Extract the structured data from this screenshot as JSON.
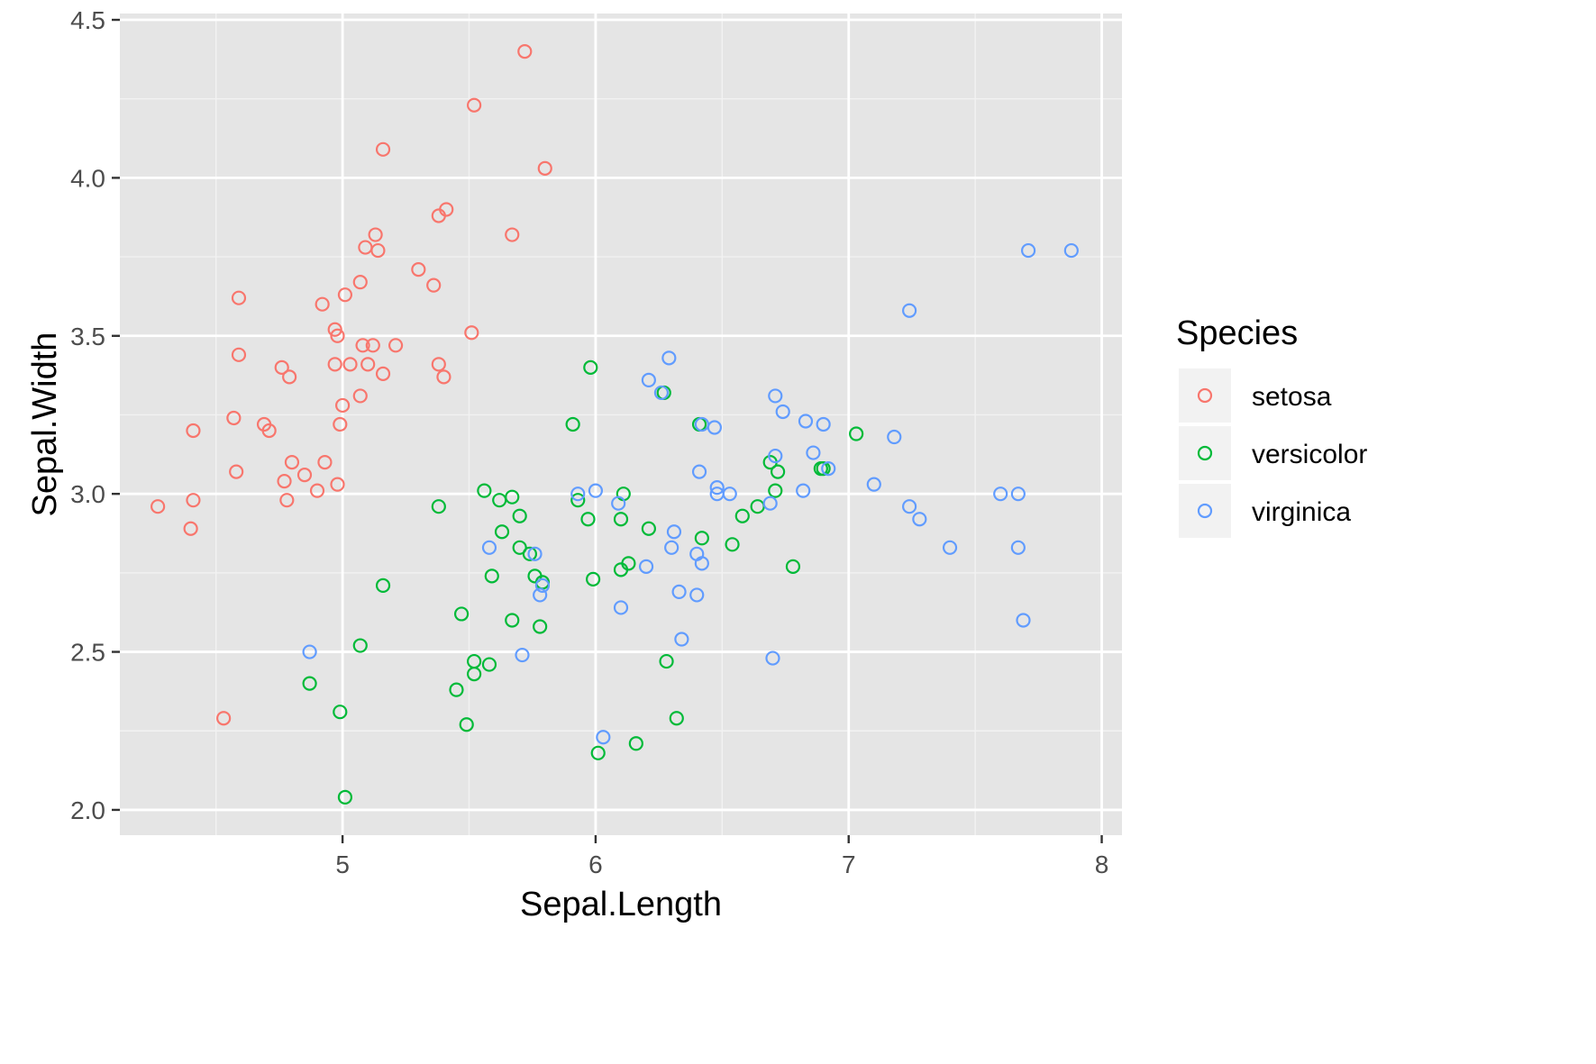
{
  "chart_data": {
    "type": "scatter",
    "xlabel": "Sepal.Length",
    "ylabel": "Sepal.Width",
    "xlim": [
      4.12,
      8.08
    ],
    "ylim": [
      1.92,
      4.52
    ],
    "x_ticks": [
      5,
      6,
      7,
      8
    ],
    "y_ticks": [
      2.0,
      2.5,
      3.0,
      3.5,
      4.0,
      4.5
    ],
    "x_tick_labels": [
      "5",
      "6",
      "7",
      "8"
    ],
    "y_tick_labels": [
      "2.0",
      "2.5",
      "3.0",
      "3.5",
      "4.0",
      "4.5"
    ],
    "grid": true,
    "panel_background": "#e5e5e5",
    "legend": {
      "title": "Species",
      "placement": "right"
    },
    "series": [
      {
        "name": "setosa",
        "color": "#f8766d",
        "points": [
          [
            5.72,
            4.4
          ],
          [
            5.52,
            4.23
          ],
          [
            5.16,
            4.09
          ],
          [
            5.8,
            4.03
          ],
          [
            5.41,
            3.9
          ],
          [
            5.38,
            3.88
          ],
          [
            5.67,
            3.82
          ],
          [
            5.13,
            3.82
          ],
          [
            5.09,
            3.78
          ],
          [
            5.14,
            3.77
          ],
          [
            5.3,
            3.71
          ],
          [
            5.07,
            3.67
          ],
          [
            5.36,
            3.66
          ],
          [
            5.01,
            3.63
          ],
          [
            4.59,
            3.62
          ],
          [
            4.92,
            3.6
          ],
          [
            4.97,
            3.52
          ],
          [
            5.51,
            3.51
          ],
          [
            4.98,
            3.5
          ],
          [
            5.08,
            3.47
          ],
          [
            5.12,
            3.47
          ],
          [
            5.21,
            3.47
          ],
          [
            4.59,
            3.44
          ],
          [
            5.03,
            3.41
          ],
          [
            4.97,
            3.41
          ],
          [
            5.1,
            3.41
          ],
          [
            5.38,
            3.41
          ],
          [
            4.76,
            3.4
          ],
          [
            5.16,
            3.38
          ],
          [
            4.79,
            3.37
          ],
          [
            5.4,
            3.37
          ],
          [
            5.07,
            3.31
          ],
          [
            5.0,
            3.28
          ],
          [
            4.57,
            3.24
          ],
          [
            4.99,
            3.22
          ],
          [
            4.69,
            3.22
          ],
          [
            4.71,
            3.2
          ],
          [
            4.41,
            3.2
          ],
          [
            4.8,
            3.1
          ],
          [
            4.93,
            3.1
          ],
          [
            4.58,
            3.07
          ],
          [
            4.85,
            3.06
          ],
          [
            4.77,
            3.04
          ],
          [
            4.98,
            3.03
          ],
          [
            4.9,
            3.01
          ],
          [
            4.78,
            2.98
          ],
          [
            4.41,
            2.98
          ],
          [
            4.27,
            2.96
          ],
          [
            4.4,
            2.89
          ],
          [
            4.53,
            2.29
          ]
        ]
      },
      {
        "name": "versicolor",
        "color": "#00ba38",
        "points": [
          [
            5.98,
            3.4
          ],
          [
            6.27,
            3.32
          ],
          [
            5.91,
            3.22
          ],
          [
            6.41,
            3.22
          ],
          [
            7.03,
            3.19
          ],
          [
            6.69,
            3.1
          ],
          [
            6.72,
            3.07
          ],
          [
            6.89,
            3.08
          ],
          [
            6.9,
            3.08
          ],
          [
            6.71,
            3.01
          ],
          [
            5.56,
            3.01
          ],
          [
            5.67,
            2.99
          ],
          [
            5.62,
            2.98
          ],
          [
            5.93,
            2.98
          ],
          [
            6.11,
            3.0
          ],
          [
            6.64,
            2.96
          ],
          [
            5.38,
            2.96
          ],
          [
            5.7,
            2.93
          ],
          [
            5.97,
            2.92
          ],
          [
            6.1,
            2.92
          ],
          [
            6.58,
            2.93
          ],
          [
            6.21,
            2.89
          ],
          [
            5.63,
            2.88
          ],
          [
            6.42,
            2.86
          ],
          [
            6.54,
            2.84
          ],
          [
            5.7,
            2.83
          ],
          [
            5.74,
            2.81
          ],
          [
            6.78,
            2.77
          ],
          [
            6.13,
            2.78
          ],
          [
            6.1,
            2.76
          ],
          [
            5.59,
            2.74
          ],
          [
            5.76,
            2.74
          ],
          [
            5.99,
            2.73
          ],
          [
            5.79,
            2.72
          ],
          [
            5.16,
            2.71
          ],
          [
            5.47,
            2.62
          ],
          [
            5.67,
            2.6
          ],
          [
            5.78,
            2.58
          ],
          [
            5.07,
            2.52
          ],
          [
            5.52,
            2.47
          ],
          [
            5.58,
            2.46
          ],
          [
            6.28,
            2.47
          ],
          [
            5.52,
            2.43
          ],
          [
            5.45,
            2.38
          ],
          [
            4.87,
            2.4
          ],
          [
            4.99,
            2.31
          ],
          [
            6.32,
            2.29
          ],
          [
            5.49,
            2.27
          ],
          [
            6.16,
            2.21
          ],
          [
            6.01,
            2.18
          ],
          [
            5.01,
            2.04
          ]
        ]
      },
      {
        "name": "virginica",
        "color": "#619cff",
        "points": [
          [
            7.71,
            3.77
          ],
          [
            7.88,
            3.77
          ],
          [
            7.24,
            3.58
          ],
          [
            6.29,
            3.43
          ],
          [
            6.21,
            3.36
          ],
          [
            6.26,
            3.32
          ],
          [
            6.71,
            3.31
          ],
          [
            6.74,
            3.26
          ],
          [
            6.83,
            3.23
          ],
          [
            6.9,
            3.22
          ],
          [
            6.42,
            3.22
          ],
          [
            6.47,
            3.21
          ],
          [
            7.18,
            3.18
          ],
          [
            6.86,
            3.13
          ],
          [
            6.71,
            3.12
          ],
          [
            6.41,
            3.07
          ],
          [
            7.1,
            3.03
          ],
          [
            6.48,
            3.02
          ],
          [
            6.0,
            3.01
          ],
          [
            6.82,
            3.01
          ],
          [
            6.92,
            3.08
          ],
          [
            7.6,
            3.0
          ],
          [
            7.67,
            3.0
          ],
          [
            5.93,
            3.0
          ],
          [
            6.48,
            3.0
          ],
          [
            6.53,
            3.0
          ],
          [
            6.69,
            2.97
          ],
          [
            6.09,
            2.97
          ],
          [
            7.24,
            2.96
          ],
          [
            7.28,
            2.92
          ],
          [
            6.31,
            2.88
          ],
          [
            5.58,
            2.83
          ],
          [
            6.3,
            2.83
          ],
          [
            7.4,
            2.83
          ],
          [
            7.67,
            2.83
          ],
          [
            5.76,
            2.81
          ],
          [
            6.4,
            2.81
          ],
          [
            6.42,
            2.78
          ],
          [
            6.2,
            2.77
          ],
          [
            5.79,
            2.71
          ],
          [
            5.78,
            2.68
          ],
          [
            6.33,
            2.69
          ],
          [
            6.4,
            2.68
          ],
          [
            6.1,
            2.64
          ],
          [
            7.69,
            2.6
          ],
          [
            6.34,
            2.54
          ],
          [
            4.87,
            2.5
          ],
          [
            5.71,
            2.49
          ],
          [
            6.7,
            2.48
          ],
          [
            6.03,
            2.23
          ]
        ]
      }
    ]
  }
}
